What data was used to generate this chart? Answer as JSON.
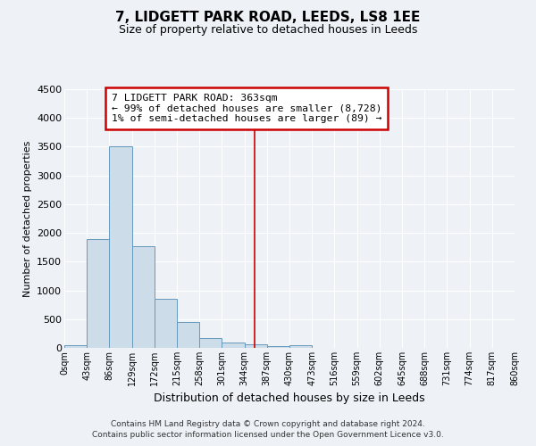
{
  "title": "7, LIDGETT PARK ROAD, LEEDS, LS8 1EE",
  "subtitle": "Size of property relative to detached houses in Leeds",
  "xlabel": "Distribution of detached houses by size in Leeds",
  "ylabel": "Number of detached properties",
  "bin_labels": [
    "0sqm",
    "43sqm",
    "86sqm",
    "129sqm",
    "172sqm",
    "215sqm",
    "258sqm",
    "301sqm",
    "344sqm",
    "387sqm",
    "430sqm",
    "473sqm",
    "516sqm",
    "559sqm",
    "602sqm",
    "645sqm",
    "688sqm",
    "731sqm",
    "774sqm",
    "817sqm",
    "860sqm"
  ],
  "bin_edges": [
    0,
    43,
    86,
    129,
    172,
    215,
    258,
    301,
    344,
    387,
    430,
    473,
    516,
    559,
    602,
    645,
    688,
    731,
    774,
    817,
    860
  ],
  "bar_values": [
    40,
    1900,
    3500,
    1775,
    850,
    450,
    165,
    95,
    65,
    35,
    40,
    0,
    0,
    0,
    0,
    0,
    0,
    0,
    0,
    0
  ],
  "bar_color": "#ccdce8",
  "bar_edge_color": "#6699bb",
  "vline_x": 363,
  "vline_color": "#cc0000",
  "ylim": [
    0,
    4500
  ],
  "yticks": [
    0,
    500,
    1000,
    1500,
    2000,
    2500,
    3000,
    3500,
    4000,
    4500
  ],
  "bg_color": "#eef2f7",
  "grid_color": "#ffffff",
  "annotation_text": "7 LIDGETT PARK ROAD: 363sqm\n← 99% of detached houses are smaller (8,728)\n1% of semi-detached houses are larger (89) →",
  "annotation_box_color": "#cc0000",
  "footer_line1": "Contains HM Land Registry data © Crown copyright and database right 2024.",
  "footer_line2": "Contains public sector information licensed under the Open Government Licence v3.0."
}
